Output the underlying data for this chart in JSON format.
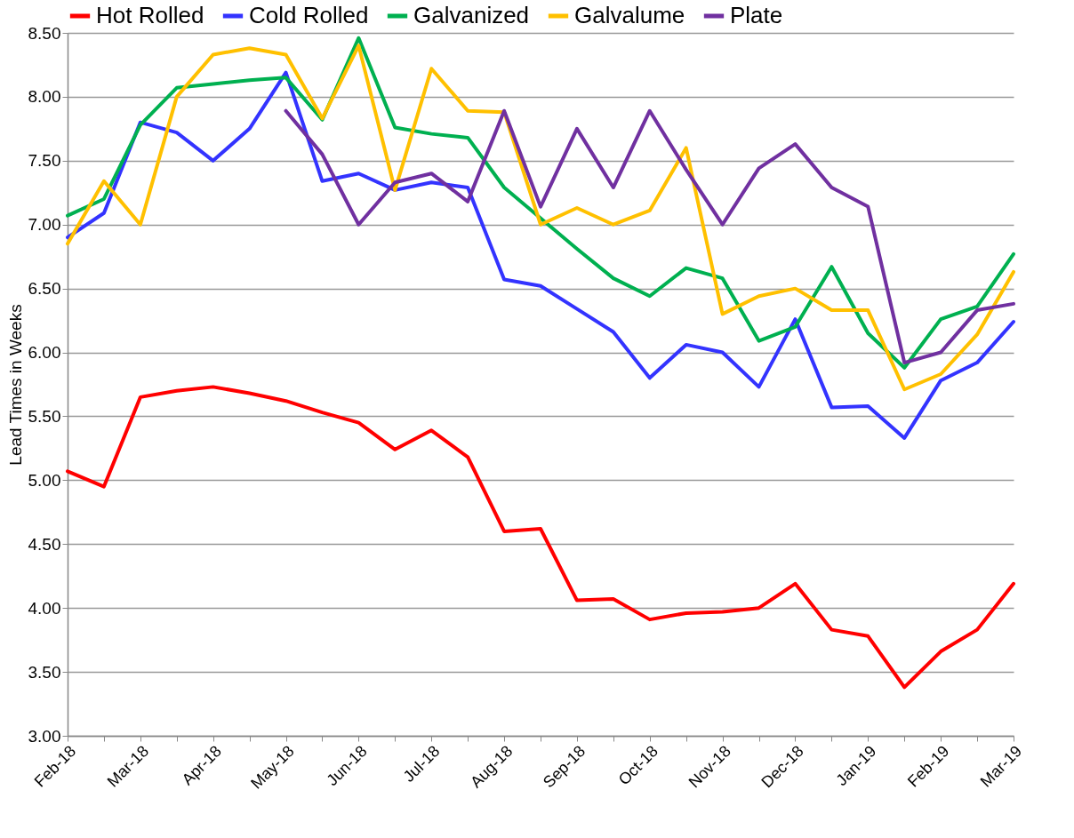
{
  "chart_data": {
    "type": "line",
    "ylabel": "Lead Times in Weeks",
    "categories": [
      "Feb-18",
      null,
      "Mar-18",
      null,
      "Apr-18",
      null,
      "May-18",
      null,
      "Jun-18",
      null,
      "Jul-18",
      null,
      "Aug-18",
      null,
      "Sep-18",
      null,
      "Oct-18",
      null,
      "Nov-18",
      null,
      "Dec-18",
      null,
      "Jan-19",
      null,
      "Feb-19",
      null,
      "Mar-19"
    ],
    "series": [
      {
        "name": "Hot Rolled",
        "color": "#ff0000",
        "values": [
          5.07,
          4.95,
          5.65,
          5.7,
          5.73,
          5.68,
          5.62,
          5.53,
          5.45,
          5.24,
          5.39,
          5.18,
          4.6,
          4.62,
          4.06,
          4.07,
          3.91,
          3.96,
          3.97,
          4.0,
          4.19,
          3.83,
          3.78,
          3.38,
          3.66,
          3.83,
          4.19
        ]
      },
      {
        "name": "Cold Rolled",
        "color": "#3333ff",
        "values": [
          6.9,
          7.09,
          7.8,
          7.72,
          7.5,
          7.75,
          8.19,
          7.34,
          7.4,
          7.27,
          7.33,
          7.29,
          6.57,
          6.52,
          6.34,
          6.16,
          5.8,
          6.06,
          6.0,
          5.73,
          6.26,
          5.57,
          5.58,
          5.33,
          5.78,
          5.92,
          6.24
        ]
      },
      {
        "name": "Galvanized",
        "color": "#00b050",
        "values": [
          7.07,
          7.2,
          7.78,
          8.07,
          8.1,
          8.13,
          8.15,
          7.82,
          8.46,
          7.76,
          7.71,
          7.68,
          7.29,
          7.05,
          6.81,
          6.58,
          6.44,
          6.66,
          6.58,
          6.09,
          6.2,
          6.67,
          6.15,
          5.88,
          6.26,
          6.36,
          6.77
        ]
      },
      {
        "name": "Galvalume",
        "color": "#ffc000",
        "values": [
          6.85,
          7.34,
          7.0,
          8.0,
          8.33,
          8.38,
          8.33,
          7.83,
          8.4,
          7.27,
          8.22,
          7.89,
          7.88,
          7.0,
          7.13,
          7.0,
          7.11,
          7.6,
          6.3,
          6.44,
          6.5,
          6.33,
          6.33,
          5.71,
          5.83,
          6.14,
          6.63
        ]
      },
      {
        "name": "Plate",
        "color": "#7030a0",
        "values": [
          null,
          null,
          null,
          null,
          null,
          null,
          7.89,
          7.55,
          7.0,
          7.33,
          7.4,
          7.18,
          7.89,
          7.14,
          7.75,
          7.29,
          7.89,
          7.43,
          7.0,
          7.44,
          7.63,
          7.29,
          7.14,
          5.92,
          6.0,
          6.33,
          6.38
        ]
      }
    ],
    "ylim": [
      3.0,
      8.5
    ],
    "yticks": [
      {
        "value": 3,
        "label": "3.00"
      },
      {
        "value": 3.5,
        "label": "3.50"
      },
      {
        "value": 4,
        "label": "4.00"
      },
      {
        "value": 4.5,
        "label": "4.50"
      },
      {
        "value": 5,
        "label": "5.00"
      },
      {
        "value": 5.5,
        "label": "5.50"
      },
      {
        "value": 6,
        "label": "6.00"
      },
      {
        "value": 6.5,
        "label": "6.50"
      },
      {
        "value": 7,
        "label": "7.00"
      },
      {
        "value": 7.5,
        "label": "7.50"
      },
      {
        "value": 8,
        "label": "8.00"
      },
      {
        "value": 8.5,
        "label": "8.50"
      }
    ],
    "grid": "y",
    "legend": "top",
    "marker": "none",
    "line_style": "solid"
  }
}
